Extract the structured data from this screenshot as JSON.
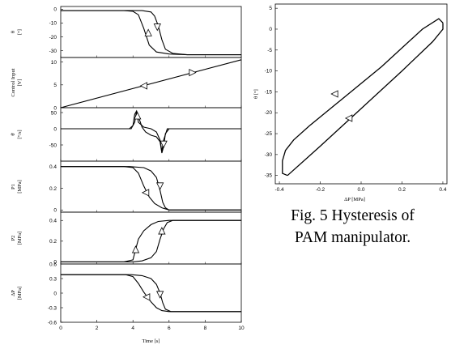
{
  "caption": {
    "line1": "Fig. 5 Hysteresis of",
    "line2": "PAM manipulator."
  },
  "chart_data": [
    {
      "type": "line",
      "panel": "theta",
      "ylabel": "θ\n[°]",
      "xlim": [
        0,
        10
      ],
      "ylim": [
        -35,
        2
      ],
      "yticks": [
        0,
        -10,
        -20,
        -30
      ],
      "series": [
        {
          "x": [
            0,
            3.5,
            4.0,
            4.3,
            4.6,
            4.9,
            5.3,
            6.0,
            7.0,
            10
          ],
          "y": [
            -1,
            -1,
            -1.5,
            -4,
            -14,
            -26,
            -31,
            -32.5,
            -33,
            -33
          ]
        },
        {
          "x": [
            0,
            3.8,
            4.5,
            5.0,
            5.2,
            5.4,
            5.6,
            5.8,
            6.2,
            7.0,
            10
          ],
          "y": [
            -1,
            -1,
            -1,
            -2,
            -5,
            -12,
            -22,
            -29,
            -32,
            -33,
            -33
          ]
        }
      ]
    },
    {
      "type": "line",
      "panel": "control",
      "ylabel": "Control Input\n[V]",
      "xlim": [
        0,
        10
      ],
      "ylim": [
        0,
        11
      ],
      "yticks": [
        0,
        5,
        10
      ],
      "series": [
        {
          "x": [
            0,
            10
          ],
          "y": [
            0,
            10.5
          ]
        }
      ]
    },
    {
      "type": "line",
      "panel": "theta-dot",
      "ylabel": "θ̇\n[°/s]",
      "xlim": [
        0,
        10
      ],
      "ylim": [
        -100,
        65
      ],
      "yticks": [
        50,
        0,
        -50
      ],
      "series": [
        {
          "x": [
            0,
            3.8,
            4.0,
            4.1,
            4.2,
            4.35,
            4.5,
            4.7,
            5.0,
            5.3,
            5.5,
            5.6,
            5.7,
            5.8,
            6.0,
            10
          ],
          "y": [
            0,
            0,
            10,
            45,
            55,
            30,
            5,
            -10,
            -20,
            -25,
            -40,
            -75,
            -55,
            -15,
            0,
            0
          ]
        },
        {
          "x": [
            0,
            3.9,
            4.1,
            4.2,
            4.3,
            4.6,
            5.0,
            5.3,
            5.5,
            5.6,
            5.7,
            5.9,
            10
          ],
          "y": [
            0,
            0,
            20,
            55,
            20,
            5,
            0,
            -10,
            -35,
            -70,
            -35,
            0,
            0
          ]
        }
      ]
    },
    {
      "type": "line",
      "panel": "P1",
      "ylabel": "P1\n[MPa]",
      "xlim": [
        0,
        10
      ],
      "ylim": [
        -0.02,
        0.45
      ],
      "yticks": [
        0.4,
        0.2,
        0.0
      ],
      "series": [
        {
          "x": [
            0,
            3.5,
            4.0,
            4.3,
            4.6,
            4.9,
            5.2,
            5.6,
            6.0,
            10
          ],
          "y": [
            0.4,
            0.4,
            0.39,
            0.34,
            0.22,
            0.12,
            0.06,
            0.02,
            0.0,
            0.0
          ]
        },
        {
          "x": [
            0,
            3.8,
            4.6,
            5.0,
            5.3,
            5.5,
            5.65,
            5.8,
            6.0,
            10
          ],
          "y": [
            0.4,
            0.4,
            0.39,
            0.36,
            0.3,
            0.18,
            0.07,
            0.02,
            0.0,
            0.0
          ]
        }
      ]
    },
    {
      "type": "line",
      "panel": "P2",
      "ylabel": "P2\n[MPa]",
      "xlim": [
        0,
        10
      ],
      "ylim": [
        -0.02,
        0.48
      ],
      "yticks": [
        0.0,
        0.2,
        0.4
      ],
      "series": [
        {
          "x": [
            0,
            3.5,
            4.0,
            4.15,
            4.3,
            4.6,
            5.0,
            5.4,
            6.0,
            10
          ],
          "y": [
            0.0,
            0.0,
            0.02,
            0.12,
            0.22,
            0.3,
            0.36,
            0.39,
            0.4,
            0.4
          ]
        },
        {
          "x": [
            0,
            4.0,
            4.5,
            5.0,
            5.3,
            5.5,
            5.7,
            5.9,
            6.2,
            10
          ],
          "y": [
            0.0,
            0.0,
            0.01,
            0.04,
            0.1,
            0.22,
            0.32,
            0.38,
            0.4,
            0.4
          ]
        }
      ]
    },
    {
      "type": "line",
      "panel": "dP",
      "ylabel": "ΔP\n[MPa]",
      "xlim": [
        0,
        10
      ],
      "ylim": [
        -0.6,
        0.6
      ],
      "yticks": [
        0.6,
        0.3,
        0.0,
        -0.3,
        -0.6
      ],
      "xticks": [
        0,
        2,
        4,
        6,
        8,
        10
      ],
      "xlabel": "Time [s]",
      "series": [
        {
          "x": [
            0,
            3.6,
            4.0,
            4.3,
            4.6,
            5.0,
            5.3,
            5.6,
            6.0,
            10
          ],
          "y": [
            0.38,
            0.38,
            0.34,
            0.2,
            0.02,
            -0.18,
            -0.3,
            -0.36,
            -0.38,
            -0.38
          ]
        },
        {
          "x": [
            0,
            3.9,
            4.5,
            5.0,
            5.3,
            5.5,
            5.65,
            5.8,
            6.1,
            10
          ],
          "y": [
            0.38,
            0.38,
            0.36,
            0.3,
            0.18,
            0.0,
            -0.2,
            -0.33,
            -0.38,
            -0.38
          ]
        }
      ]
    },
    {
      "type": "line",
      "panel": "hysteresis",
      "xlabel": "ΔP [MPa]",
      "ylabel": "θ [°]",
      "xlim": [
        -0.42,
        0.42
      ],
      "ylim": [
        -37,
        6
      ],
      "xticks": [
        -0.4,
        -0.2,
        0.0,
        0.2,
        0.4
      ],
      "xtick_labels": [
        "-0.4",
        "-0.2",
        "0.0",
        "0.2",
        "0.4"
      ],
      "yticks": [
        5,
        0,
        -5,
        -10,
        -15,
        -20,
        -25,
        -30,
        -35
      ],
      "series": [
        {
          "x": [
            0.4,
            0.38,
            0.3,
            0.1,
            -0.1,
            -0.25,
            -0.33,
            -0.37,
            -0.385,
            -0.385,
            -0.36
          ],
          "y": [
            1.5,
            2.5,
            0.0,
            -9.0,
            -17.0,
            -23.0,
            -26.5,
            -29.0,
            -31.5,
            -34.5,
            -35.0
          ]
        },
        {
          "x": [
            -0.36,
            -0.2,
            0.0,
            0.2,
            0.35,
            0.4,
            0.4
          ],
          "y": [
            -35.0,
            -28.0,
            -19.0,
            -10.0,
            -3.0,
            0.0,
            1.5
          ]
        }
      ]
    }
  ]
}
